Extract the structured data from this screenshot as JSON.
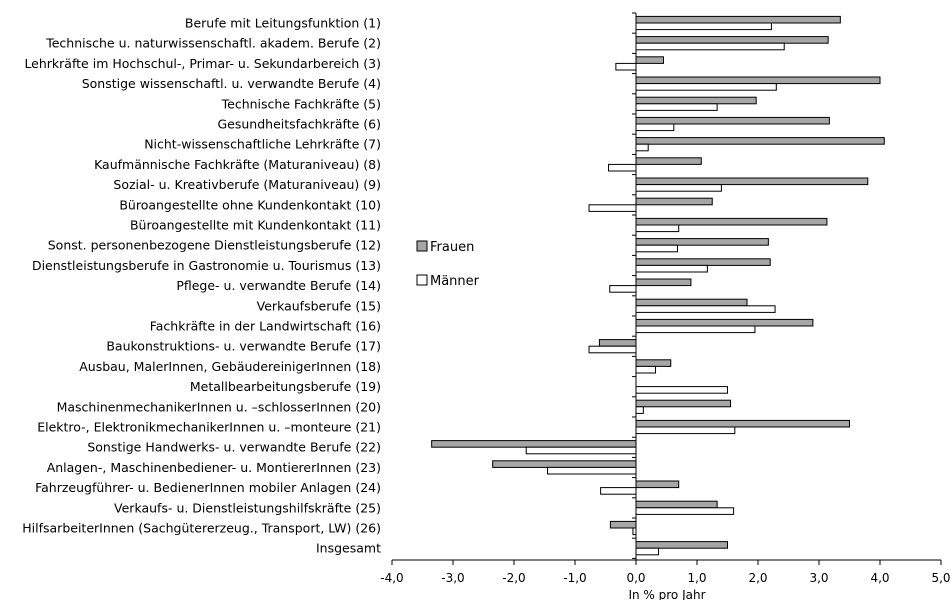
{
  "chart_data": {
    "type": "bar",
    "orientation": "horizontal",
    "categories": [
      "Berufe mit Leitungsfunktion (1)",
      "Technische u. naturwissenschaftl. akadem. Berufe (2)",
      "Lehrkräfte im Hochschul-, Primar- u. Sekundarbereich (3)",
      "Sonstige wissenschaftl. u. verwandte Berufe (4)",
      "Technische Fachkräfte (5)",
      "Gesundheitsfachkräfte (6)",
      "Nicht-wissenschaftliche Lehrkräfte (7)",
      "Kaufmännische Fachkräfte (Maturaniveau) (8)",
      "Sozial- u. Kreativberufe (Maturaniveau) (9)",
      "Büroangestellte ohne Kundenkontakt (10)",
      "Büroangestellte mit Kundenkontakt (11)",
      "Sonst. personenbezogene Dienstleistungsberufe (12)",
      "Dienstleistungsberufe in Gastronomie u. Tourismus (13)",
      "Pflege- u. verwandte Berufe (14)",
      "Verkaufsberufe (15)",
      "Fachkräfte in der Landwirtschaft (16)",
      "Baukonstruktions- u. verwandte Berufe (17)",
      "Ausbau, MalerInnen, GebäudereinigerInnen (18)",
      "Metallbearbeitungsberufe (19)",
      "MaschinenmechanikerInnen u. –schlosserInnen (20)",
      "Elektro-, ElektronikmechanikerInnen u. –monteure (21)",
      "Sonstige Handwerks- u. verwandte Berufe (22)",
      "Anlagen-, Maschinenbediener- u. MontiererInnen (23)",
      "Fahrzeugführer- u. BedienerInnen mobiler Anlagen (24)",
      "Verkaufs- u. Dienstleistungshilfskräfte (25)",
      "HilfsarbeiterInnen (Sachgütererzeug., Transport, LW) (26)",
      "Insgesamt"
    ],
    "series": [
      {
        "name": "Frauen",
        "color": "#a6a6a6",
        "values": [
          3.35,
          3.15,
          0.45,
          4.0,
          1.97,
          3.17,
          4.07,
          1.07,
          3.8,
          1.25,
          3.13,
          2.17,
          2.2,
          0.9,
          1.82,
          2.9,
          -0.6,
          0.57,
          0.0,
          1.55,
          3.5,
          -3.35,
          -2.35,
          0.7,
          1.33,
          -0.42,
          1.5
        ]
      },
      {
        "name": "Männer",
        "color": "#ffffff",
        "values": [
          2.22,
          2.43,
          -0.33,
          2.3,
          1.33,
          0.62,
          0.2,
          -0.45,
          1.4,
          -0.77,
          0.7,
          0.68,
          1.17,
          -0.43,
          2.28,
          1.95,
          -0.77,
          0.32,
          1.5,
          0.12,
          1.62,
          -1.8,
          -1.45,
          -0.58,
          1.6,
          -0.05,
          0.37
        ]
      }
    ],
    "xlim": [
      -4.0,
      5.0
    ],
    "ticks": [
      -4.0,
      -3.0,
      -2.0,
      -1.0,
      0.0,
      1.0,
      2.0,
      3.0,
      4.0,
      5.0
    ],
    "tick_labels": [
      "-4,0",
      "-3,0",
      "-2,0",
      "-1,0",
      "0,0",
      "1,0",
      "2,0",
      "3,0",
      "4,0",
      "5,0"
    ],
    "xlabel": "In % pro Jahr",
    "legend_position": "middle-left of plot area"
  }
}
